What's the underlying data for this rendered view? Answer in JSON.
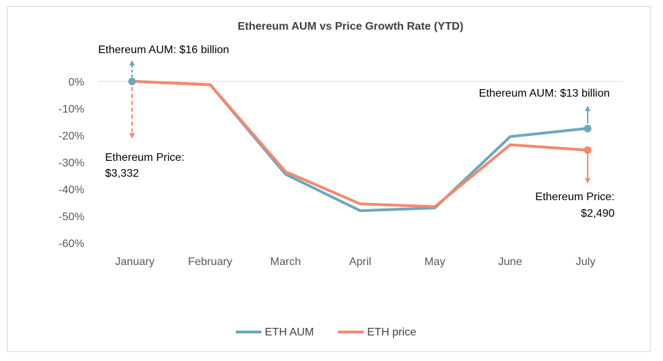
{
  "chart_data": {
    "type": "line",
    "title": "Ethereum AUM vs Price Growth Rate (YTD)",
    "categories": [
      "January",
      "February",
      "March",
      "April",
      "May",
      "June",
      "July"
    ],
    "ylim": [
      -60,
      0
    ],
    "yticks": [
      0,
      -10,
      -20,
      -30,
      -40,
      -50,
      -60
    ],
    "ytick_labels": [
      "0%",
      "-10%",
      "-20%",
      "-30%",
      "-40%",
      "-50%",
      "-60%"
    ],
    "grid": false,
    "legend_position": "bottom",
    "series": [
      {
        "name": "ETH AUM",
        "color": "#6ba8be",
        "values": [
          0,
          -1.2,
          -34.5,
          -48,
          -47,
          -20.5,
          -17.5
        ]
      },
      {
        "name": "ETH price",
        "color": "#f4896c",
        "values": [
          0,
          -1.2,
          -33.5,
          -45.5,
          -46.5,
          -23.5,
          -25.5
        ]
      }
    ],
    "annotations": {
      "aum_start": "Ethereum AUM: $16 billion",
      "price_start_line1": "Ethereum Price:",
      "price_start_line2": "$3,332",
      "aum_end": "Ethereum AUM: $13 billion",
      "price_end_line1": "Ethereum Price:",
      "price_end_line2": "$2,490"
    }
  }
}
